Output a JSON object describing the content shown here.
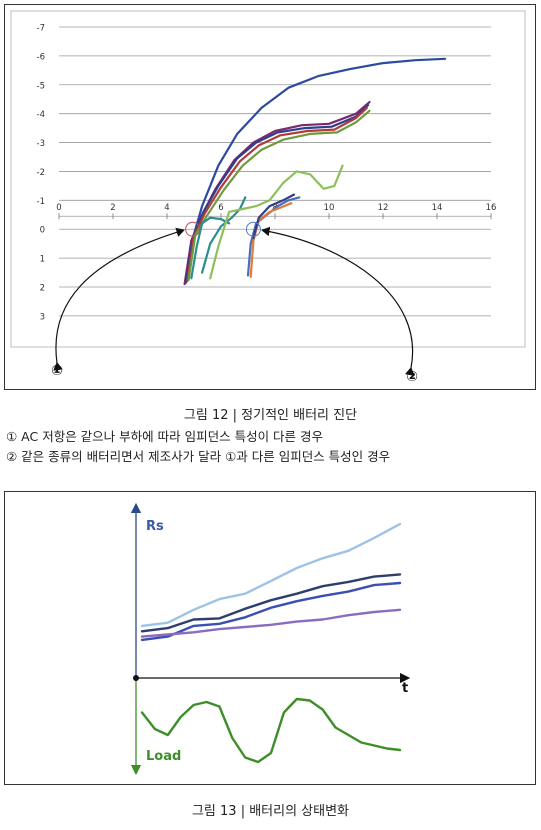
{
  "figure12": {
    "caption": "그림 12 | 정기적인 배터리 진단",
    "notes": [
      "① AC 저항은 같으나 부하에 따라 임피던스 특성이 다른 경우",
      "② 같은 종류의 배터리면서 제조사가 달라 ①과 다른 임피던스 특성인 경우"
    ],
    "markers": [
      "①",
      "②"
    ]
  },
  "figure13": {
    "caption": "그림 13 | 배터리의 상태변화",
    "ylabel_top": "Rs",
    "ylabel_bottom": "Load",
    "xlabel": "t"
  },
  "chart_data": [
    {
      "type": "line",
      "title": "",
      "xlabel": "",
      "ylabel": "",
      "xlim": [
        0,
        16
      ],
      "ylim": [
        3.8,
        -7
      ],
      "x_ticks": [
        0,
        2,
        4,
        6,
        8,
        10,
        12,
        14,
        16
      ],
      "y_ticks": [
        -7,
        -6,
        -5,
        -4,
        -3,
        -2,
        -1,
        0,
        1,
        2,
        3
      ],
      "grid": true,
      "series": [
        {
          "color": "#2b4aa0",
          "x": [
            4.7,
            4.9,
            5.3,
            5.9,
            6.6,
            7.5,
            8.5,
            9.6,
            10.8,
            12.0,
            13.2,
            14.3
          ],
          "y": [
            1.8,
            0.5,
            -0.8,
            -2.2,
            -3.3,
            -4.2,
            -4.9,
            -5.3,
            -5.55,
            -5.75,
            -5.85,
            -5.9
          ]
        },
        {
          "color": "#7a2a6e",
          "x": [
            4.65,
            4.9,
            5.3,
            5.8,
            6.5,
            7.2,
            8.0,
            9.0,
            10.0,
            11.0,
            11.5
          ],
          "y": [
            1.9,
            0.4,
            -0.5,
            -1.4,
            -2.4,
            -3.0,
            -3.4,
            -3.6,
            -3.65,
            -4.0,
            -4.4
          ]
        },
        {
          "color": "#2f3f8c",
          "x": [
            4.7,
            4.95,
            5.35,
            5.9,
            6.6,
            7.3,
            8.1,
            9.1,
            10.1,
            11.0,
            11.45
          ],
          "y": [
            1.85,
            0.3,
            -0.6,
            -1.5,
            -2.45,
            -3.0,
            -3.35,
            -3.5,
            -3.55,
            -3.9,
            -4.3
          ]
        },
        {
          "color": "#b33a3a",
          "x": [
            4.75,
            5.0,
            5.4,
            6.0,
            6.7,
            7.4,
            8.2,
            9.2,
            10.2,
            11.0,
            11.4
          ],
          "y": [
            1.8,
            0.25,
            -0.55,
            -1.45,
            -2.35,
            -2.9,
            -3.25,
            -3.4,
            -3.45,
            -3.85,
            -4.2
          ]
        },
        {
          "color": "#6f9a3a",
          "x": [
            4.8,
            5.05,
            5.5,
            6.1,
            6.8,
            7.5,
            8.3,
            9.3,
            10.3,
            11.0,
            11.5
          ],
          "y": [
            1.75,
            0.2,
            -0.5,
            -1.35,
            -2.2,
            -2.75,
            -3.1,
            -3.3,
            -3.35,
            -3.7,
            -4.1
          ]
        },
        {
          "color": "#2a8e8e",
          "x": [
            4.9,
            5.1,
            5.3,
            5.6,
            6.0,
            6.3
          ],
          "y": [
            1.7,
            0.6,
            -0.2,
            -0.4,
            -0.35,
            -0.2
          ]
        },
        {
          "color": "#2a8e8e",
          "x": [
            5.3,
            5.6,
            6.0,
            6.4,
            6.7,
            6.9
          ],
          "y": [
            1.5,
            0.5,
            -0.1,
            -0.4,
            -0.7,
            -1.1
          ]
        },
        {
          "color": "#8fbf5a",
          "x": [
            5.6,
            5.9,
            6.3,
            6.8,
            7.3,
            7.8,
            8.3,
            8.8,
            9.3,
            9.8,
            10.2,
            10.5
          ],
          "y": [
            1.7,
            0.6,
            -0.6,
            -0.7,
            -0.8,
            -1.0,
            -1.6,
            -2.0,
            -1.9,
            -1.4,
            -1.5,
            -2.2
          ]
        },
        {
          "color": "#4a6fb5",
          "x": [
            7.0,
            7.1,
            7.3,
            7.7,
            8.1,
            8.5,
            8.9
          ],
          "y": [
            1.6,
            0.5,
            -0.2,
            -0.5,
            -0.8,
            -1.0,
            -1.1
          ]
        },
        {
          "color": "#e07b39",
          "x": [
            7.1,
            7.2,
            7.4,
            7.8,
            8.2,
            8.6
          ],
          "y": [
            1.65,
            0.4,
            -0.3,
            -0.6,
            -0.75,
            -0.9
          ]
        },
        {
          "color": "#2f3f8c",
          "x": [
            7.2,
            7.4,
            7.8,
            8.3,
            8.7
          ],
          "y": [
            0.3,
            -0.4,
            -0.8,
            -1.0,
            -1.2
          ]
        }
      ]
    },
    {
      "type": "line",
      "title": "",
      "xlabel": "t",
      "ylabel": "Rs",
      "series": [
        {
          "color": "#9cc3e6",
          "x": [
            0,
            1,
            2,
            3,
            4,
            5,
            6,
            7,
            8,
            9,
            10
          ],
          "y": [
            3.0,
            3.3,
            4.5,
            5.5,
            6.0,
            7.2,
            8.4,
            9.3,
            10.0,
            11.2,
            12.5
          ]
        },
        {
          "color": "#2e3f6e",
          "x": [
            0,
            1,
            2,
            3,
            4,
            5,
            6,
            7,
            8,
            9,
            10
          ],
          "y": [
            2.5,
            2.8,
            3.6,
            3.7,
            4.6,
            5.4,
            6.0,
            6.7,
            7.1,
            7.6,
            7.8
          ]
        },
        {
          "color": "#3a4fb0",
          "x": [
            0,
            1,
            2,
            3,
            4,
            5,
            6,
            7,
            8,
            9,
            10
          ],
          "y": [
            1.7,
            2.0,
            3.0,
            3.2,
            3.8,
            4.7,
            5.3,
            5.8,
            6.2,
            6.8,
            7.0
          ]
        },
        {
          "color": "#8a6cc0",
          "x": [
            0,
            1,
            2,
            3,
            4,
            5,
            6,
            7,
            8,
            9,
            10
          ],
          "y": [
            2.0,
            2.2,
            2.4,
            2.7,
            2.9,
            3.1,
            3.4,
            3.6,
            4.0,
            4.3,
            4.5
          ]
        }
      ],
      "load_series": {
        "name": "Load",
        "color": "#3e8e2a",
        "x": [
          0,
          0.5,
          1,
          1.5,
          2,
          2.5,
          3,
          3.5,
          4,
          4.5,
          5,
          5.5,
          6,
          6.5,
          7,
          7.5,
          8,
          8.5,
          9,
          9.5,
          10
        ],
        "y": [
          0.5,
          -0.6,
          -1.0,
          0.2,
          1.0,
          1.2,
          0.9,
          -1.2,
          -2.5,
          -2.8,
          -2.2,
          0.5,
          1.4,
          1.3,
          0.7,
          -0.5,
          -1.0,
          -1.5,
          -1.7,
          -1.9,
          -2.0
        ]
      }
    }
  ]
}
